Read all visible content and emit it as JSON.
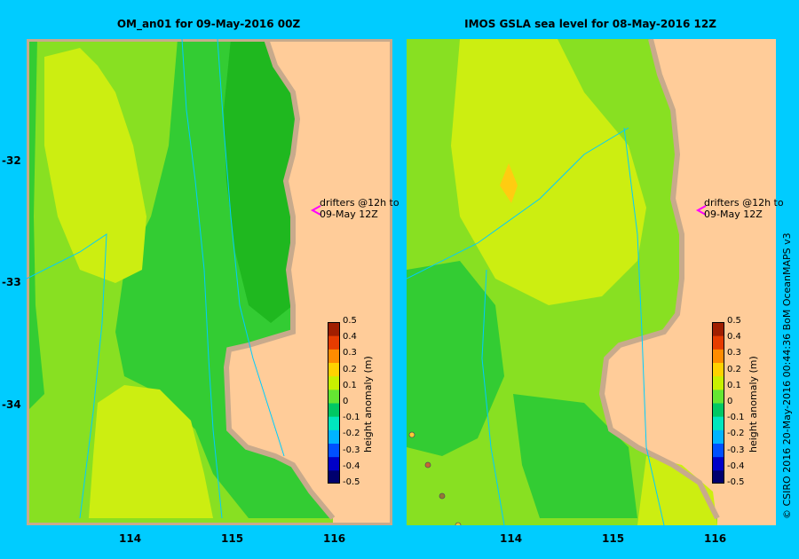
{
  "panels": [
    {
      "title": "OM_an01  for 09-May-2016 00Z"
    },
    {
      "title": "IMOS  GSLA sea level   for 08-May-2016 12Z"
    }
  ],
  "axes": {
    "y_ticks": [
      "-32",
      "-33",
      "-34"
    ],
    "x_ticks": [
      "114",
      "115",
      "116"
    ]
  },
  "annotation": {
    "line1": "drifters @12h to",
    "line2": "09-May 12Z"
  },
  "colorbar": {
    "label": "height anomaly (m)",
    "ticks": [
      "0.5",
      "0.4",
      "0.3",
      "0.2",
      "0.1",
      "0",
      "-0.1",
      "-0.2",
      "-0.3",
      "-0.4",
      "-0.5"
    ],
    "colors": [
      "#00006e",
      "#0000c8",
      "#0050ff",
      "#00b4ff",
      "#00e6be",
      "#00c864",
      "#64e632",
      "#c8f000",
      "#ffd200",
      "#ff8c00",
      "#e63c00",
      "#a01e00"
    ]
  },
  "credit": "© CSIRO 2016   20-May-2016 00:44:36 BoM OceanMAPS v3",
  "colors": {
    "background": "#00ccff",
    "land": "#ffcc99",
    "shelf": "#c8aa8c",
    "sea_green": "#33cc33",
    "sea_light": "#88e022",
    "sea_yellow": "#ccee11",
    "sea_dark": "#1fb81f"
  }
}
